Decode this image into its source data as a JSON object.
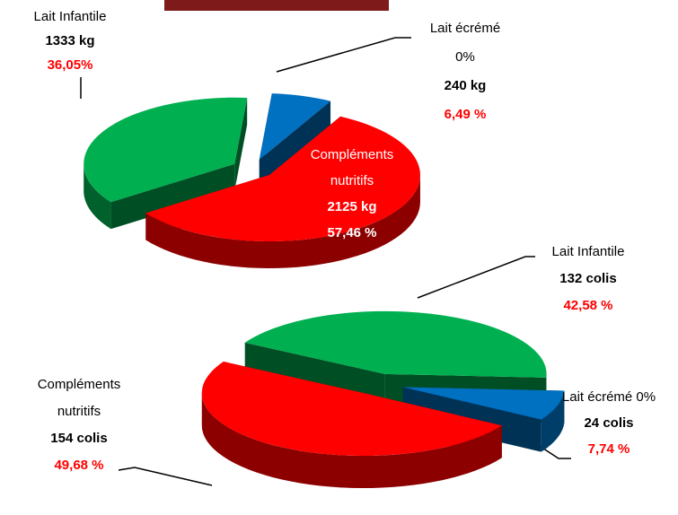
{
  "chart_data": [
    {
      "type": "pie3d",
      "categories": [
        "Lait Infantile",
        "Lait écrémé 0%",
        "Compléments nutritifs"
      ],
      "values": [
        36.05,
        6.49,
        57.46
      ],
      "value_labels": [
        "36,05%",
        "6,49 %",
        "57,46 %"
      ],
      "amount_labels": [
        "1333 kg",
        "240 kg",
        "2125 kg"
      ],
      "colors": [
        "#00b050",
        "#0070c0",
        "#ff0000"
      ]
    },
    {
      "type": "pie3d",
      "categories": [
        "Lait Infantile",
        "Lait écrémé 0%",
        "Compléments nutritifs"
      ],
      "values": [
        42.58,
        7.74,
        49.68
      ],
      "value_labels": [
        "42,58 %",
        "7,74 %",
        "49,68 %"
      ],
      "amount_labels": [
        "132 colis",
        "24 colis",
        "154 colis"
      ],
      "colors": [
        "#00b050",
        "#0070c0",
        "#ff0000"
      ]
    }
  ]
}
